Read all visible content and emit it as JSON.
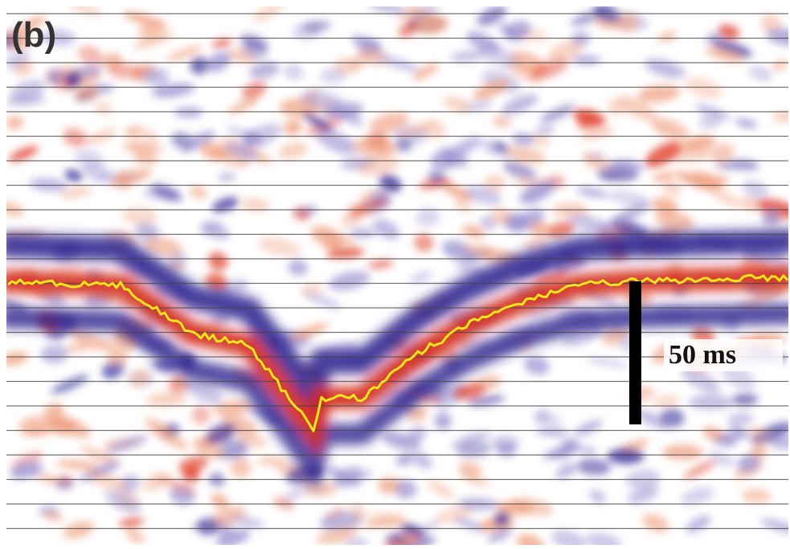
{
  "panel_label": "(b)",
  "scale_bar": {
    "label": "50 ms"
  }
}
